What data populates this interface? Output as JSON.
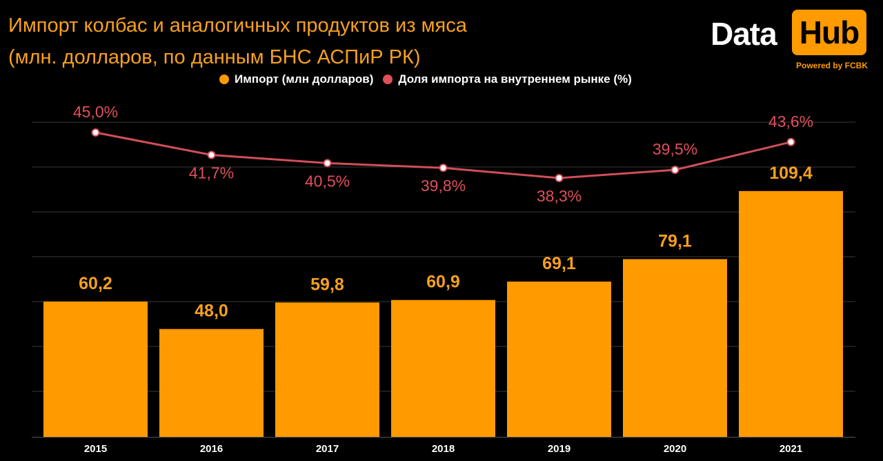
{
  "title": {
    "line1": "Импорт колбас и аналогичных продуктов из мяса",
    "line2": "(млн. долларов, по данным БНС АСПиР РК)"
  },
  "logo": {
    "data_text": "Data",
    "hub_text": "Hub",
    "powered_text": "Powered by FCBK"
  },
  "colors": {
    "background": "#000000",
    "bar": "#ff9a00",
    "bar_label": "#f7a01e",
    "line": "#d04f59",
    "line_label": "#e0505a",
    "title": "#f7a01e",
    "gridline": "#3a3a3a"
  },
  "chart_data": {
    "type": "bar",
    "categories": [
      "2015",
      "2016",
      "2017",
      "2018",
      "2019",
      "2020",
      "2021"
    ],
    "series": [
      {
        "name": "Импорт (млн долларов)",
        "type": "bar",
        "axis": "left",
        "values": [
          60.2,
          48.0,
          59.8,
          60.9,
          69.1,
          79.1,
          109.4
        ],
        "labels": [
          "60,2",
          "48,0",
          "59,8",
          "60,9",
          "69,1",
          "79,1",
          "109,4"
        ]
      },
      {
        "name": "Доля импорта на внутреннем рынке (%)",
        "type": "line",
        "axis": "right",
        "values": [
          45.0,
          41.7,
          40.5,
          39.8,
          38.3,
          39.5,
          43.6
        ],
        "labels": [
          "45,0%",
          "41,7%",
          "40,5%",
          "39,8%",
          "38,3%",
          "39,5%",
          "43,6%"
        ]
      }
    ],
    "legend_position": "top-center",
    "grid": true,
    "bar_ylim": [
      0,
      140
    ],
    "line_ylim": [
      0,
      60
    ]
  }
}
